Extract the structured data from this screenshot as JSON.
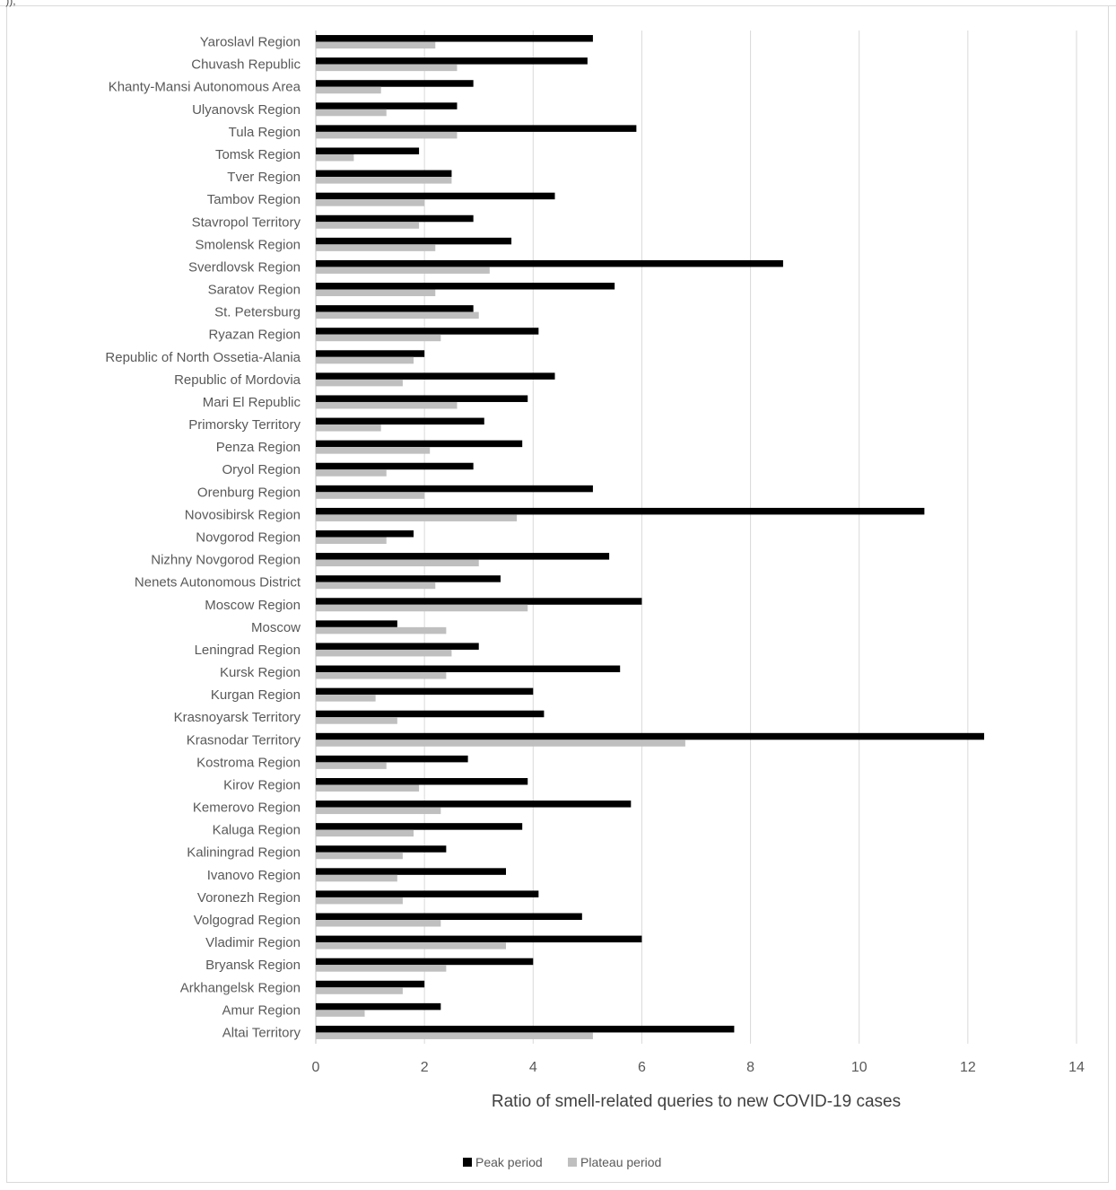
{
  "chart_data": {
    "type": "bar",
    "orientation": "horizontal",
    "title": "",
    "xlabel": "Ratio of smell-related queries to new COVID-19 cases",
    "ylabel": "",
    "xlim": [
      0,
      14
    ],
    "xticks": [
      0,
      2,
      4,
      6,
      8,
      10,
      12,
      14
    ],
    "grid": true,
    "legend_position": "bottom",
    "categories": [
      "Yaroslavl Region",
      "Chuvash Republic",
      "Khanty-Mansi Autonomous Area",
      "Ulyanovsk Region",
      "Tula Region",
      "Tomsk Region",
      "Tver Region",
      "Tambov Region",
      "Stavropol Territory",
      "Smolensk Region",
      "Sverdlovsk Region",
      "Saratov Region",
      "St. Petersburg",
      "Ryazan Region",
      "Republic of North Ossetia-Alania",
      "Republic of Mordovia",
      "Mari El Republic",
      "Primorsky Territory",
      "Penza Region",
      "Oryol Region",
      "Orenburg Region",
      "Novosibirsk Region",
      "Novgorod Region",
      "Nizhny Novgorod Region",
      "Nenets Autonomous District",
      "Moscow Region",
      "Moscow",
      "Leningrad Region",
      "Kursk Region",
      "Kurgan Region",
      "Krasnoyarsk Territory",
      "Krasnodar Territory",
      "Kostroma Region",
      "Kirov Region",
      "Kemerovo Region",
      "Kaluga Region",
      "Kaliningrad Region",
      "Ivanovo Region",
      "Voronezh Region",
      "Volgograd Region",
      "Vladimir Region",
      "Bryansk Region",
      "Arkhangelsk Region",
      "Amur Region",
      "Altai Territory"
    ],
    "series": [
      {
        "name": "Peak period",
        "color": "#000000",
        "values": [
          5.1,
          5.0,
          2.9,
          2.6,
          5.9,
          1.9,
          2.5,
          4.4,
          2.9,
          3.6,
          8.6,
          5.5,
          2.9,
          4.1,
          2.0,
          4.4,
          3.9,
          3.1,
          3.8,
          2.9,
          5.1,
          11.2,
          1.8,
          5.4,
          3.4,
          6.0,
          1.5,
          3.0,
          5.6,
          4.0,
          4.2,
          12.3,
          2.8,
          3.9,
          5.8,
          3.8,
          2.4,
          3.5,
          4.1,
          4.9,
          6.0,
          4.0,
          2.0,
          2.3,
          7.7
        ]
      },
      {
        "name": "Plateau period",
        "color": "#bfbfbf",
        "values": [
          2.2,
          2.6,
          1.2,
          1.3,
          2.6,
          0.7,
          2.5,
          2.0,
          1.9,
          2.2,
          3.2,
          2.2,
          3.0,
          2.3,
          1.8,
          1.6,
          2.6,
          1.2,
          2.1,
          1.3,
          2.0,
          3.7,
          1.3,
          3.0,
          2.2,
          3.9,
          2.4,
          2.5,
          2.4,
          1.1,
          1.5,
          6.8,
          1.3,
          1.9,
          2.3,
          1.8,
          1.6,
          1.5,
          1.6,
          2.3,
          3.5,
          2.4,
          1.6,
          0.9,
          5.1
        ]
      }
    ]
  },
  "misc": {
    "corner_mark": "\")),"
  },
  "colors": {
    "gridline": "#d9d9d9",
    "axis": "#bfbfbf",
    "text": "#404040",
    "label_text": "#595959"
  }
}
